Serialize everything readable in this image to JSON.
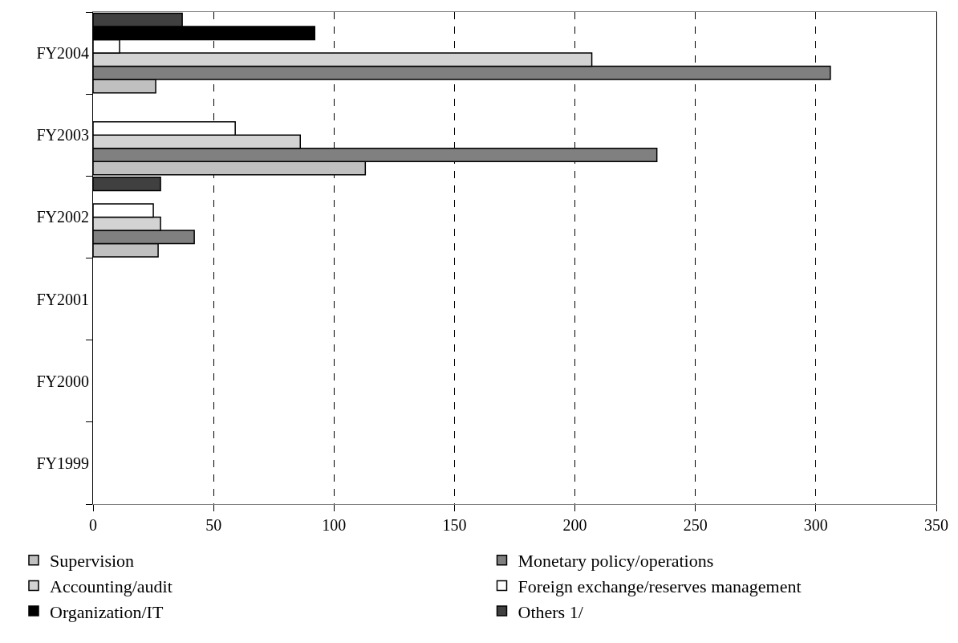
{
  "chart_data": {
    "type": "bar",
    "orientation": "horizontal",
    "categories": [
      "FY2004",
      "FY2003",
      "FY2002",
      "FY2001",
      "FY2000",
      "FY1999"
    ],
    "series": [
      {
        "name": "Supervision",
        "color": "#c0c0c0",
        "values": [
          26,
          113,
          27,
          null,
          null,
          null
        ]
      },
      {
        "name": "Monetary policy/operations",
        "color": "#808080",
        "values": [
          306,
          234,
          42,
          null,
          null,
          null
        ]
      },
      {
        "name": "Accounting/audit",
        "color": "#d3d3d3",
        "values": [
          207,
          86,
          28,
          null,
          null,
          null
        ]
      },
      {
        "name": "Foreign exchange/reserves management",
        "color": "#ffffff",
        "values": [
          11,
          59,
          25,
          null,
          null,
          null
        ]
      },
      {
        "name": "Organization/IT",
        "color": "#000000",
        "values": [
          92,
          null,
          null,
          null,
          null,
          null
        ]
      },
      {
        "name": "Others 1/",
        "color": "#404040",
        "values": [
          37,
          null,
          28,
          null,
          null,
          null
        ]
      }
    ],
    "xlim": [
      0,
      350
    ],
    "xticks": [
      0,
      50,
      100,
      150,
      200,
      250,
      300,
      350
    ],
    "grid": "x",
    "legend": "bottom"
  }
}
